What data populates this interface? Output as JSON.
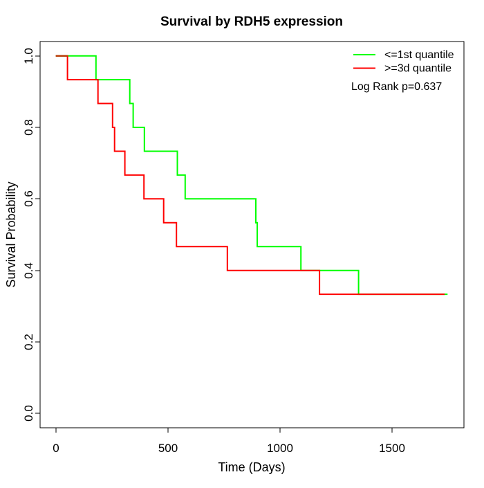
{
  "chart_data": {
    "type": "line",
    "subtype": "kaplan-meier-step",
    "title": "Survival by RDH5 expression",
    "xlabel": "Time (Days)",
    "ylabel": "Survival Probability",
    "xlim": [
      0,
      1750
    ],
    "ylim": [
      0,
      1
    ],
    "grid": false,
    "xticks": [
      0,
      500,
      1000,
      1500
    ],
    "xtick_labels": [
      "0",
      "500",
      "1000",
      "1500"
    ],
    "yticks": [
      0.0,
      0.2,
      0.4,
      0.6,
      0.8,
      1.0
    ],
    "ytick_labels": [
      "0.0",
      "0.2",
      "0.4",
      "0.6",
      "0.8",
      "1.0"
    ],
    "series": [
      {
        "name": "<=1st quantile",
        "color": "#00ff00",
        "start": {
          "time": 0,
          "survival": 1.0
        },
        "event_times": [
          179,
          330,
          345,
          395,
          542,
          577,
          892,
          898,
          1093,
          1350
        ],
        "survival": [
          0.9333,
          0.8667,
          0.8,
          0.7333,
          0.6667,
          0.6,
          0.5333,
          0.4667,
          0.4,
          0.3333
        ],
        "end_time": 1747
      },
      {
        "name": ">=3d quantile",
        "color": "#ff0000",
        "start": {
          "time": 0,
          "survival": 1.0
        },
        "event_times": [
          52,
          188,
          253,
          262,
          308,
          393,
          481,
          538,
          765,
          1176
        ],
        "survival": [
          0.9333,
          0.8667,
          0.8,
          0.7333,
          0.6667,
          0.6,
          0.5333,
          0.4667,
          0.4,
          0.3333
        ],
        "end_time": 1734
      }
    ],
    "overlap_start_segment": {
      "time_range": [
        0,
        52
      ],
      "survival": 1.0,
      "color": "#b83400"
    },
    "annotation": "Log Rank p=0.637",
    "legend_position": "top-right"
  },
  "legend": {
    "items": [
      {
        "label": "<=1st quantile",
        "color": "#00ff00"
      },
      {
        "label": ">=3d quantile",
        "color": "#ff0000"
      }
    ],
    "annotation": "Log Rank p=0.637"
  }
}
